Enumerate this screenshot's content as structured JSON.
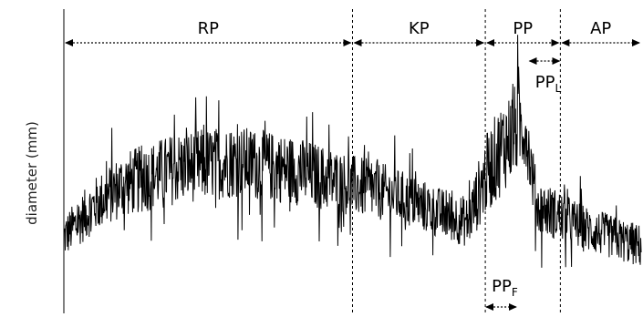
{
  "chart_data": {
    "type": "line",
    "title": "",
    "xlabel": "",
    "ylabel": "diameter (mm)",
    "grid": false,
    "legend": "none",
    "phases": [
      {
        "name": "RP",
        "start": 0.0,
        "end": 0.5
      },
      {
        "name": "KP",
        "start": 0.5,
        "end": 0.73
      },
      {
        "name": "PP",
        "start": 0.73,
        "end": 0.86
      },
      {
        "name": "AP",
        "start": 0.86,
        "end": 1.0
      }
    ],
    "sub_phases": [
      {
        "base": "PP",
        "sub": "L",
        "start": 0.805,
        "end": 0.86,
        "position": "upper"
      },
      {
        "base": "PP",
        "sub": "F",
        "start": 0.73,
        "end": 0.785,
        "position": "bottom"
      }
    ],
    "boundaries": [
      0.5,
      0.73,
      0.86
    ],
    "series_envelope": {
      "x": [
        0.0,
        0.05,
        0.1,
        0.2,
        0.3,
        0.4,
        0.5,
        0.55,
        0.6,
        0.65,
        0.7,
        0.73,
        0.76,
        0.79,
        0.8,
        0.82,
        0.86,
        0.9,
        0.95,
        1.0
      ],
      "baseline": [
        0.25,
        0.35,
        0.42,
        0.48,
        0.5,
        0.47,
        0.42,
        0.4,
        0.37,
        0.33,
        0.3,
        0.45,
        0.55,
        0.62,
        0.6,
        0.35,
        0.32,
        0.28,
        0.25,
        0.22
      ],
      "amplitude": [
        0.12,
        0.15,
        0.18,
        0.2,
        0.2,
        0.19,
        0.17,
        0.16,
        0.15,
        0.14,
        0.14,
        0.22,
        0.26,
        0.25,
        0.2,
        0.15,
        0.14,
        0.13,
        0.12,
        0.12
      ]
    }
  }
}
